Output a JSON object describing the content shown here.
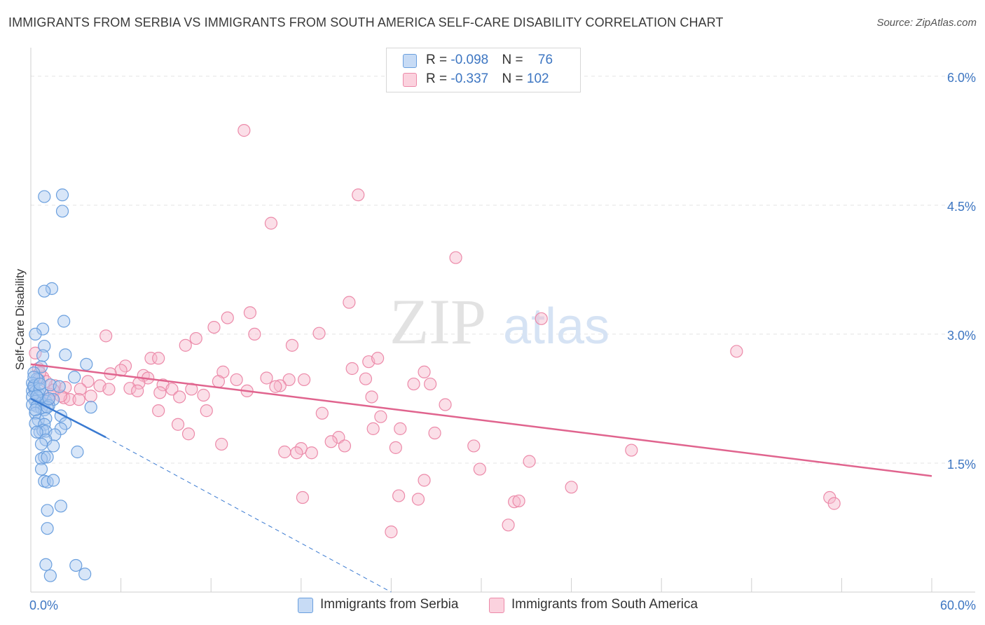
{
  "title": "IMMIGRANTS FROM SERBIA VS IMMIGRANTS FROM SOUTH AMERICA SELF-CARE DISABILITY CORRELATION CHART",
  "source": "Source: ZipAtlas.com",
  "watermark": {
    "zip": "ZIP",
    "atlas": "atlas"
  },
  "legend": {
    "serbia": {
      "r_label": "R = ",
      "r_value": "-0.098",
      "n_label": "N = ",
      "n_value": "76"
    },
    "south_america": {
      "r_label": "R = ",
      "r_value": "-0.337",
      "n_label": "N = ",
      "n_value": "102"
    }
  },
  "colors": {
    "serbia_fill": "#a9c8f0",
    "serbia_stroke": "#6a9fde",
    "serbia_line": "#3a7ad1",
    "sa_fill": "#f6b9cb",
    "sa_stroke": "#ec8aa9",
    "sa_line": "#e0648e",
    "tick_text": "#3d76c2",
    "grid": "#e4e4e4"
  },
  "chart_data": {
    "type": "scatter",
    "title": "IMMIGRANTS FROM SERBIA VS IMMIGRANTS FROM SOUTH AMERICA SELF-CARE DISABILITY CORRELATION CHART",
    "xlabel": "",
    "ylabel": "Self-Care Disability",
    "xlim": [
      0,
      60
    ],
    "ylim": [
      0,
      6.3
    ],
    "x_tick_labels": {
      "left": "0.0%",
      "right": "60.0%"
    },
    "y_ticks": [
      {
        "value": 1.5,
        "label": "1.5%"
      },
      {
        "value": 3.0,
        "label": "3.0%"
      },
      {
        "value": 4.5,
        "label": "4.5%"
      },
      {
        "value": 6.0,
        "label": "6.0%"
      }
    ],
    "series": [
      {
        "name": "Immigrants from Serbia",
        "R": -0.098,
        "N": 76,
        "trend_solid": [
          [
            0.0,
            2.25
          ],
          [
            5.0,
            1.8
          ]
        ],
        "trend_dashed": [
          [
            5.0,
            1.8
          ],
          [
            24.0,
            0.0
          ]
        ],
        "points": [
          [
            0.9,
            4.6
          ],
          [
            2.1,
            4.62
          ],
          [
            2.1,
            4.43
          ],
          [
            1.4,
            3.53
          ],
          [
            0.9,
            3.5
          ],
          [
            2.2,
            3.15
          ],
          [
            0.8,
            3.06
          ],
          [
            0.3,
            3.0
          ],
          [
            0.9,
            2.86
          ],
          [
            0.8,
            2.75
          ],
          [
            2.3,
            2.76
          ],
          [
            3.7,
            2.65
          ],
          [
            0.7,
            2.62
          ],
          [
            0.2,
            2.55
          ],
          [
            0.5,
            2.47
          ],
          [
            0.4,
            2.48
          ],
          [
            2.9,
            2.5
          ],
          [
            0.1,
            2.43
          ],
          [
            0.2,
            2.38
          ],
          [
            1.3,
            2.41
          ],
          [
            1.9,
            2.39
          ],
          [
            0.1,
            2.34
          ],
          [
            0.3,
            2.33
          ],
          [
            0.5,
            2.31
          ],
          [
            0.8,
            2.3
          ],
          [
            0.1,
            2.27
          ],
          [
            0.5,
            2.26
          ],
          [
            0.3,
            2.22
          ],
          [
            0.7,
            2.2
          ],
          [
            1.0,
            2.22
          ],
          [
            1.5,
            2.24
          ],
          [
            1.2,
            2.17
          ],
          [
            0.1,
            2.18
          ],
          [
            0.4,
            2.16
          ],
          [
            0.7,
            2.14
          ],
          [
            0.9,
            2.12
          ],
          [
            1.1,
            2.15
          ],
          [
            4.0,
            2.15
          ],
          [
            0.3,
            2.08
          ],
          [
            2.0,
            2.05
          ],
          [
            0.5,
            2.0
          ],
          [
            1.0,
            2.02
          ],
          [
            0.3,
            1.96
          ],
          [
            0.9,
            1.95
          ],
          [
            2.3,
            1.96
          ],
          [
            2.0,
            1.9
          ],
          [
            0.6,
            1.86
          ],
          [
            0.8,
            1.88
          ],
          [
            1.0,
            1.87
          ],
          [
            0.4,
            1.86
          ],
          [
            1.6,
            1.83
          ],
          [
            1.0,
            1.77
          ],
          [
            0.7,
            1.72
          ],
          [
            1.5,
            1.7
          ],
          [
            3.1,
            1.63
          ],
          [
            0.9,
            1.57
          ],
          [
            0.7,
            1.55
          ],
          [
            1.1,
            1.57
          ],
          [
            0.7,
            1.43
          ],
          [
            0.9,
            1.29
          ],
          [
            1.1,
            1.28
          ],
          [
            1.5,
            1.3
          ],
          [
            2.0,
            1.0
          ],
          [
            1.1,
            0.95
          ],
          [
            1.1,
            0.74
          ],
          [
            1.0,
            0.32
          ],
          [
            3.0,
            0.31
          ],
          [
            3.6,
            0.21
          ],
          [
            1.3,
            0.19
          ],
          [
            0.2,
            2.4
          ],
          [
            0.6,
            2.36
          ],
          [
            0.2,
            2.5
          ],
          [
            0.4,
            2.28
          ],
          [
            0.3,
            2.12
          ],
          [
            1.2,
            2.25
          ],
          [
            0.6,
            2.42
          ]
        ]
      },
      {
        "name": "Immigrants from South America",
        "R": -0.337,
        "N": 102,
        "trend": [
          [
            0.0,
            2.65
          ],
          [
            60.0,
            1.35
          ]
        ],
        "points": [
          [
            14.2,
            5.37
          ],
          [
            21.8,
            4.62
          ],
          [
            16.0,
            4.29
          ],
          [
            28.3,
            3.89
          ],
          [
            21.2,
            3.37
          ],
          [
            34.0,
            3.18
          ],
          [
            13.1,
            3.19
          ],
          [
            14.6,
            3.25
          ],
          [
            12.2,
            3.08
          ],
          [
            19.2,
            3.01
          ],
          [
            14.9,
            3.0
          ],
          [
            5.0,
            2.98
          ],
          [
            11.0,
            2.95
          ],
          [
            10.3,
            2.87
          ],
          [
            17.4,
            2.87
          ],
          [
            47.0,
            2.8
          ],
          [
            8.0,
            2.72
          ],
          [
            8.5,
            2.72
          ],
          [
            22.5,
            2.68
          ],
          [
            23.1,
            2.72
          ],
          [
            6.3,
            2.63
          ],
          [
            6.0,
            2.58
          ],
          [
            12.8,
            2.56
          ],
          [
            21.4,
            2.6
          ],
          [
            26.2,
            2.56
          ],
          [
            5.3,
            2.54
          ],
          [
            7.5,
            2.52
          ],
          [
            7.8,
            2.49
          ],
          [
            13.7,
            2.47
          ],
          [
            15.7,
            2.49
          ],
          [
            17.2,
            2.47
          ],
          [
            18.2,
            2.47
          ],
          [
            22.3,
            2.48
          ],
          [
            12.5,
            2.45
          ],
          [
            3.8,
            2.45
          ],
          [
            4.6,
            2.4
          ],
          [
            7.2,
            2.43
          ],
          [
            8.8,
            2.41
          ],
          [
            16.6,
            2.4
          ],
          [
            16.3,
            2.39
          ],
          [
            25.5,
            2.42
          ],
          [
            26.6,
            2.42
          ],
          [
            5.2,
            2.36
          ],
          [
            6.6,
            2.37
          ],
          [
            7.1,
            2.34
          ],
          [
            9.4,
            2.36
          ],
          [
            10.7,
            2.36
          ],
          [
            14.4,
            2.34
          ],
          [
            1.6,
            2.4
          ],
          [
            2.3,
            2.38
          ],
          [
            3.3,
            2.36
          ],
          [
            8.6,
            2.32
          ],
          [
            9.9,
            2.27
          ],
          [
            11.5,
            2.29
          ],
          [
            22.7,
            2.27
          ],
          [
            1.2,
            2.24
          ],
          [
            2.2,
            2.26
          ],
          [
            2.6,
            2.24
          ],
          [
            3.2,
            2.24
          ],
          [
            4.0,
            2.28
          ],
          [
            27.6,
            2.18
          ],
          [
            8.5,
            2.11
          ],
          [
            11.7,
            2.11
          ],
          [
            19.4,
            2.08
          ],
          [
            23.3,
            2.04
          ],
          [
            9.8,
            1.95
          ],
          [
            22.8,
            1.9
          ],
          [
            24.6,
            1.9
          ],
          [
            10.5,
            1.84
          ],
          [
            26.9,
            1.85
          ],
          [
            20.5,
            1.8
          ],
          [
            20.0,
            1.75
          ],
          [
            12.7,
            1.72
          ],
          [
            20.9,
            1.7
          ],
          [
            29.5,
            1.7
          ],
          [
            24.3,
            1.68
          ],
          [
            18.0,
            1.67
          ],
          [
            16.9,
            1.63
          ],
          [
            17.7,
            1.62
          ],
          [
            18.7,
            1.62
          ],
          [
            40.0,
            1.65
          ],
          [
            33.2,
            1.52
          ],
          [
            29.9,
            1.43
          ],
          [
            26.2,
            1.3
          ],
          [
            36.0,
            1.22
          ],
          [
            18.1,
            1.1
          ],
          [
            24.5,
            1.12
          ],
          [
            25.8,
            1.08
          ],
          [
            32.2,
            1.05
          ],
          [
            32.5,
            1.06
          ],
          [
            53.2,
            1.1
          ],
          [
            53.5,
            1.03
          ],
          [
            31.8,
            0.78
          ],
          [
            24.0,
            0.7
          ],
          [
            0.3,
            2.78
          ],
          [
            0.5,
            2.6
          ],
          [
            0.8,
            2.5
          ],
          [
            1.0,
            2.45
          ],
          [
            1.3,
            2.3
          ],
          [
            2.0,
            2.28
          ],
          [
            0.6,
            2.55
          ],
          [
            1.5,
            2.35
          ]
        ]
      }
    ]
  },
  "bottom_legend": {
    "serbia": "Immigrants from Serbia",
    "south_america": "Immigrants from South America"
  }
}
